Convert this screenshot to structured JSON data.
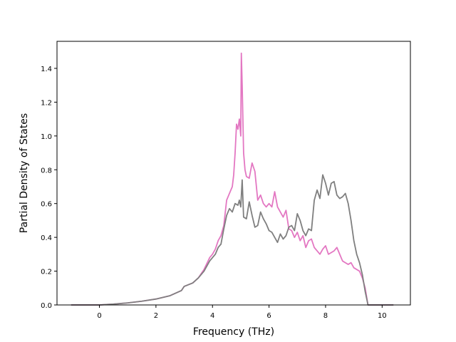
{
  "chart_data": {
    "type": "line",
    "xlabel": "Frequency (THz)",
    "ylabel": "Partial Density of States",
    "xlim": [
      -1.5,
      11.0
    ],
    "ylim": [
      0.0,
      1.56
    ],
    "xticks": [
      0,
      2,
      4,
      6,
      8,
      10
    ],
    "yticks": [
      0.0,
      0.2,
      0.4,
      0.6,
      0.8,
      1.0,
      1.2,
      1.4
    ],
    "xtick_labels": [
      "0",
      "2",
      "4",
      "6",
      "8",
      "10"
    ],
    "ytick_labels": [
      "0.0",
      "0.2",
      "0.4",
      "0.6",
      "0.8",
      "1.0",
      "1.2",
      "1.4"
    ],
    "grid": false,
    "series": [
      {
        "color": "#e377c2",
        "x": [
          -1.0,
          0.0,
          0.5,
          1.0,
          1.5,
          2.0,
          2.5,
          2.9,
          3.0,
          3.3,
          3.5,
          3.7,
          3.9,
          4.0,
          4.1,
          4.2,
          4.3,
          4.4,
          4.5,
          4.6,
          4.7,
          4.75,
          4.8,
          4.85,
          4.9,
          4.95,
          5.0,
          5.02,
          5.05,
          5.1,
          5.15,
          5.2,
          5.3,
          5.4,
          5.5,
          5.6,
          5.7,
          5.8,
          5.9,
          6.0,
          6.1,
          6.2,
          6.3,
          6.4,
          6.5,
          6.6,
          6.7,
          6.8,
          6.9,
          7.0,
          7.1,
          7.2,
          7.3,
          7.4,
          7.5,
          7.6,
          7.7,
          7.8,
          7.9,
          8.0,
          8.1,
          8.2,
          8.3,
          8.4,
          8.5,
          8.6,
          8.7,
          8.8,
          8.9,
          9.0,
          9.1,
          9.2,
          9.3,
          9.4,
          9.5,
          9.6,
          10.0,
          10.4
        ],
        "y": [
          0.0,
          0.0,
          0.005,
          0.012,
          0.022,
          0.035,
          0.055,
          0.085,
          0.11,
          0.13,
          0.16,
          0.21,
          0.28,
          0.3,
          0.33,
          0.38,
          0.41,
          0.47,
          0.62,
          0.66,
          0.7,
          0.77,
          0.9,
          1.07,
          1.04,
          1.1,
          1.0,
          1.49,
          1.3,
          0.9,
          0.8,
          0.76,
          0.75,
          0.84,
          0.79,
          0.62,
          0.65,
          0.6,
          0.58,
          0.6,
          0.58,
          0.67,
          0.58,
          0.55,
          0.52,
          0.56,
          0.45,
          0.44,
          0.4,
          0.43,
          0.38,
          0.41,
          0.34,
          0.38,
          0.39,
          0.34,
          0.32,
          0.3,
          0.33,
          0.35,
          0.3,
          0.31,
          0.32,
          0.34,
          0.3,
          0.26,
          0.25,
          0.24,
          0.25,
          0.22,
          0.21,
          0.2,
          0.16,
          0.1,
          0.0,
          0.0,
          0.0,
          0.0
        ]
      },
      {
        "color": "#7f7f7f",
        "x": [
          -1.0,
          0.0,
          0.5,
          1.0,
          1.5,
          2.0,
          2.5,
          2.9,
          3.0,
          3.3,
          3.5,
          3.7,
          3.9,
          4.0,
          4.1,
          4.2,
          4.3,
          4.4,
          4.5,
          4.6,
          4.7,
          4.8,
          4.9,
          4.95,
          5.0,
          5.05,
          5.1,
          5.2,
          5.3,
          5.4,
          5.5,
          5.6,
          5.7,
          5.8,
          5.9,
          6.0,
          6.1,
          6.2,
          6.3,
          6.4,
          6.5,
          6.6,
          6.7,
          6.8,
          6.9,
          7.0,
          7.1,
          7.2,
          7.3,
          7.4,
          7.5,
          7.6,
          7.7,
          7.8,
          7.9,
          8.0,
          8.1,
          8.2,
          8.3,
          8.4,
          8.5,
          8.6,
          8.7,
          8.8,
          8.9,
          9.0,
          9.1,
          9.2,
          9.3,
          9.4,
          9.5,
          9.6,
          10.0,
          10.4
        ],
        "y": [
          0.0,
          0.0,
          0.005,
          0.012,
          0.022,
          0.035,
          0.055,
          0.085,
          0.11,
          0.13,
          0.16,
          0.2,
          0.26,
          0.28,
          0.3,
          0.34,
          0.36,
          0.45,
          0.53,
          0.57,
          0.55,
          0.6,
          0.59,
          0.62,
          0.58,
          0.74,
          0.52,
          0.51,
          0.61,
          0.53,
          0.46,
          0.47,
          0.55,
          0.51,
          0.48,
          0.44,
          0.43,
          0.4,
          0.37,
          0.42,
          0.39,
          0.41,
          0.46,
          0.47,
          0.44,
          0.54,
          0.5,
          0.44,
          0.41,
          0.45,
          0.44,
          0.62,
          0.68,
          0.63,
          0.77,
          0.72,
          0.65,
          0.72,
          0.73,
          0.65,
          0.63,
          0.64,
          0.66,
          0.6,
          0.5,
          0.38,
          0.3,
          0.25,
          0.18,
          0.08,
          0.0,
          0.0,
          0.0,
          0.0
        ]
      }
    ]
  }
}
